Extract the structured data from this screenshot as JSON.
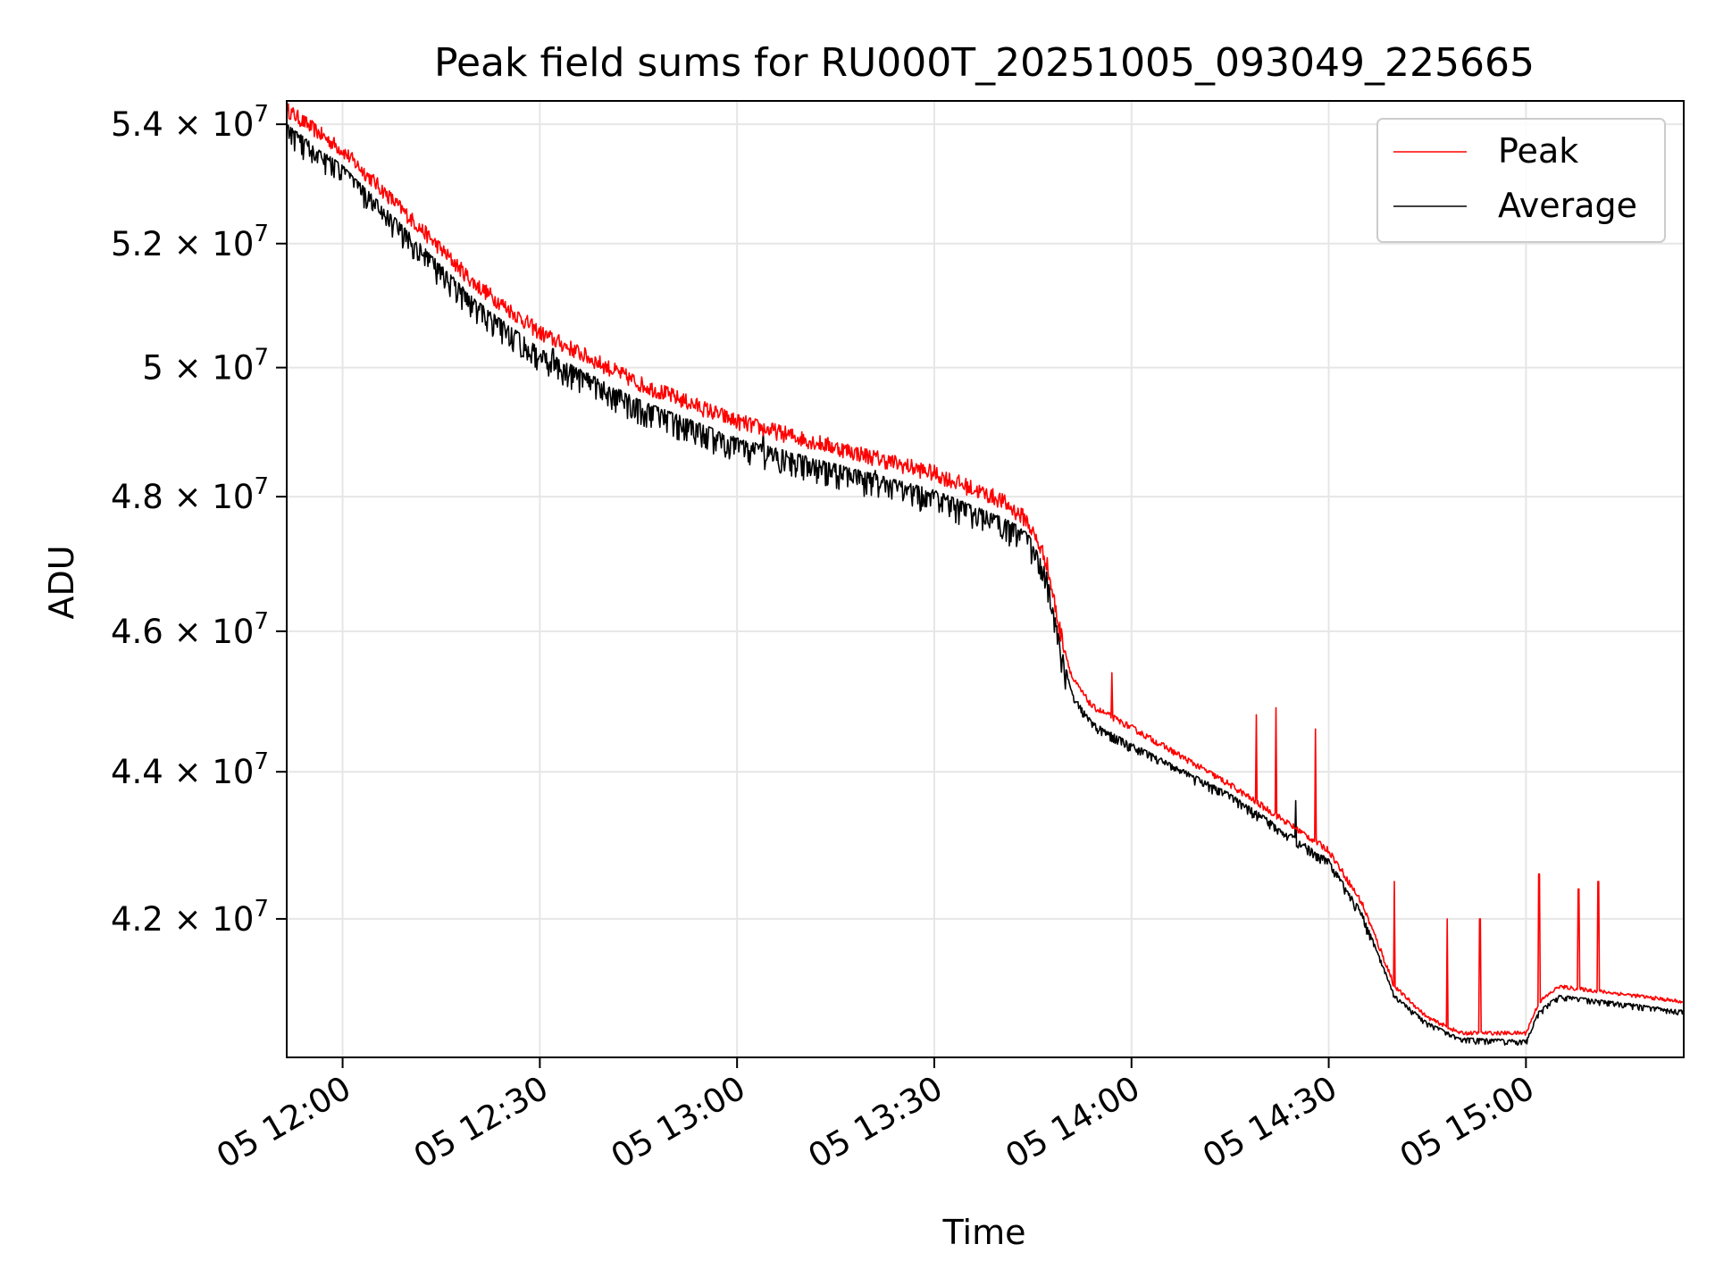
{
  "chart_data": {
    "type": "line",
    "title": "Peak field sums for RU000T_20251005_093049_225665",
    "xlabel": "Time",
    "ylabel": "ADU",
    "yscale": "log",
    "xlim": [
      "05 11:51",
      "05 15:14"
    ],
    "ylim": [
      40200000,
      54400000
    ],
    "grid": true,
    "legend_position": "upper right",
    "x_ticks": [
      {
        "label": "05 12:00",
        "minutes": 0
      },
      {
        "label": "05 12:30",
        "minutes": 30
      },
      {
        "label": "05 13:00",
        "minutes": 60
      },
      {
        "label": "05 13:30",
        "minutes": 90
      },
      {
        "label": "05 14:00",
        "minutes": 120
      },
      {
        "label": "05 14:30",
        "minutes": 150
      },
      {
        "label": "05 15:00",
        "minutes": 180
      }
    ],
    "y_ticks": [
      {
        "mantissa": "5.4",
        "exp": "7",
        "value": 54000000
      },
      {
        "mantissa": "5.2",
        "exp": "7",
        "value": 52000000
      },
      {
        "mantissa": "5",
        "exp": "7",
        "value": 50000000
      },
      {
        "mantissa": "4.8",
        "exp": "7",
        "value": 48000000
      },
      {
        "mantissa": "4.6",
        "exp": "7",
        "value": 46000000
      },
      {
        "mantissa": "4.4",
        "exp": "7",
        "value": 44000000
      },
      {
        "mantissa": "4.2",
        "exp": "7",
        "value": 42000000
      }
    ],
    "series": [
      {
        "name": "Peak",
        "color": "#ff0000",
        "minutes": [
          -8.5,
          0,
          10,
          20,
          30,
          45,
          60,
          75,
          90,
          100,
          104,
          107,
          109,
          111,
          114,
          120,
          135,
          150,
          155,
          160,
          165,
          170,
          180,
          182,
          185,
          195,
          204
        ],
        "values": [
          54200000,
          53500000,
          52400000,
          51300000,
          50500000,
          49700000,
          49100000,
          48700000,
          48300000,
          47900000,
          47600000,
          47000000,
          46000000,
          45300000,
          44900000,
          44600000,
          43800000,
          42900000,
          42200000,
          41100000,
          40700000,
          40500000,
          40500000,
          40900000,
          41100000,
          41000000,
          40900000
        ],
        "spikes": [
          {
            "minutes": 117,
            "value": 45400000
          },
          {
            "minutes": 139,
            "value": 44800000
          },
          {
            "minutes": 142,
            "value": 44900000
          },
          {
            "minutes": 148,
            "value": 44600000
          },
          {
            "minutes": 160,
            "value": 42500000
          },
          {
            "minutes": 168,
            "value": 42000000
          },
          {
            "minutes": 173,
            "value": 42000000
          },
          {
            "minutes": 182,
            "value": 42600000
          },
          {
            "minutes": 188,
            "value": 42400000
          },
          {
            "minutes": 191,
            "value": 42500000
          }
        ]
      },
      {
        "name": "Average",
        "color": "#000000",
        "minutes": [
          -8.5,
          0,
          10,
          20,
          30,
          45,
          60,
          75,
          90,
          100,
          104,
          107,
          109,
          111,
          114,
          120,
          135,
          150,
          155,
          160,
          165,
          170,
          180,
          182,
          185,
          195,
          204
        ],
        "values": [
          54000000,
          53300000,
          52200000,
          51100000,
          50300000,
          49500000,
          48900000,
          48500000,
          48100000,
          47700000,
          47500000,
          46900000,
          45900000,
          45100000,
          44700000,
          44400000,
          43700000,
          42800000,
          42100000,
          41000000,
          40650000,
          40450000,
          40420000,
          40800000,
          41000000,
          40900000,
          40800000
        ],
        "dips": [
          {
            "minutes": 11,
            "value": 52000000
          },
          {
            "minutes": 32,
            "value": 50300000
          },
          {
            "minutes": 64,
            "value": 49000000
          },
          {
            "minutes": 81,
            "value": 48400000
          },
          {
            "minutes": 93,
            "value": 47800000
          },
          {
            "minutes": 145,
            "value": 43600000
          }
        ]
      }
    ]
  }
}
